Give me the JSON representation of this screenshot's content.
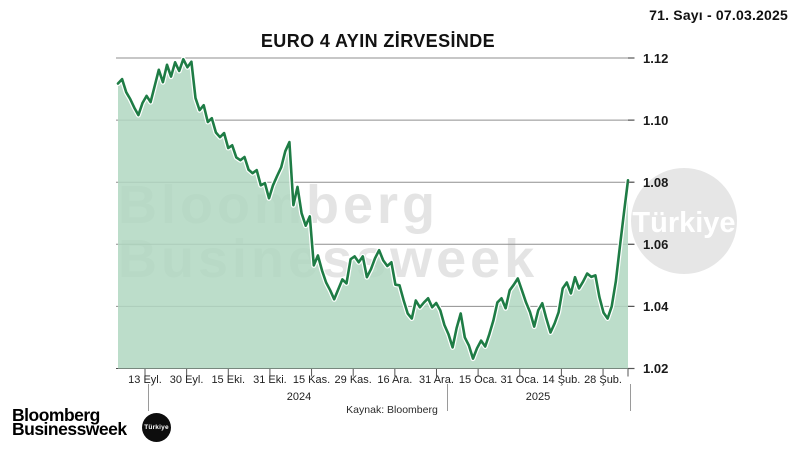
{
  "header": {
    "issue_label": "71. Sayı - 07.03.2025"
  },
  "chart": {
    "title": "EURO 4 AYIN ZİRVESİNDE",
    "source_label": "Kaynak: Bloomberg",
    "watermark_line1": "Bloomberg",
    "watermark_line2": "Businessweek",
    "watermark_badge": "Türkiye"
  },
  "logo": {
    "line1": "Bloomberg",
    "line2": "Businessweek",
    "badge": "Türkiye"
  },
  "chart_data": {
    "type": "area",
    "title": "EURO 4 AYIN ZİRVESİNDE",
    "xlabel": "",
    "ylabel": "",
    "ylim": [
      1.02,
      1.12
    ],
    "grid": true,
    "legend": "none",
    "x_tick_labels": [
      "13 Eyl.",
      "30 Eyl.",
      "15 Eki.",
      "31 Eki.",
      "15 Kas.",
      "29 Kas.",
      "16 Ara.",
      "31 Ara.",
      "15 Oca.",
      "31 Oca.",
      "14 Şub.",
      "28 Şub."
    ],
    "year_labels": [
      "2024",
      "2025"
    ],
    "y_ticks": [
      1.12,
      1.1,
      1.08,
      1.06,
      1.04,
      1.02
    ],
    "line_color": "#1e7c45",
    "fill_color": "#b0d7c1",
    "values": [
      1.1118,
      1.1132,
      1.109,
      1.1068,
      1.104,
      1.1016,
      1.1055,
      1.1078,
      1.1058,
      1.111,
      1.1162,
      1.1122,
      1.1178,
      1.114,
      1.1186,
      1.1158,
      1.1196,
      1.117,
      1.1188,
      1.1071,
      1.1032,
      1.1048,
      1.0994,
      1.1006,
      1.096,
      1.0945,
      1.0958,
      1.091,
      1.0919,
      1.088,
      1.0871,
      1.0881,
      1.084,
      1.0829,
      1.0839,
      1.079,
      1.0797,
      1.0748,
      1.079,
      1.082,
      1.0848,
      1.09,
      1.0929,
      1.0726,
      1.0785,
      1.07,
      1.066,
      1.069,
      1.0532,
      1.0564,
      1.0516,
      1.0477,
      1.0452,
      1.0423,
      1.0455,
      1.0487,
      1.0474,
      1.0552,
      1.0561,
      1.0542,
      1.0561,
      1.0494,
      1.052,
      1.0555,
      1.0581,
      1.0548,
      1.053,
      1.0542,
      1.047,
      1.0468,
      1.042,
      1.0377,
      1.0361,
      1.0419,
      1.0397,
      1.0413,
      1.0426,
      1.0397,
      1.0411,
      1.0387,
      1.034,
      1.031,
      1.0268,
      1.033,
      1.0377,
      1.03,
      1.0274,
      1.0232,
      1.0265,
      1.029,
      1.0271,
      1.031,
      1.0355,
      1.0413,
      1.0426,
      1.0394,
      1.0452,
      1.047,
      1.049,
      1.0452,
      1.0413,
      1.0381,
      1.0335,
      1.0387,
      1.041,
      1.036,
      1.0316,
      1.0345,
      1.0381,
      1.0458,
      1.0477,
      1.0442,
      1.0494,
      1.0458,
      1.048,
      1.0506,
      1.0495,
      1.05,
      1.043,
      1.038,
      1.0361,
      1.04,
      1.048,
      1.059,
      1.07,
      1.0806
    ]
  }
}
